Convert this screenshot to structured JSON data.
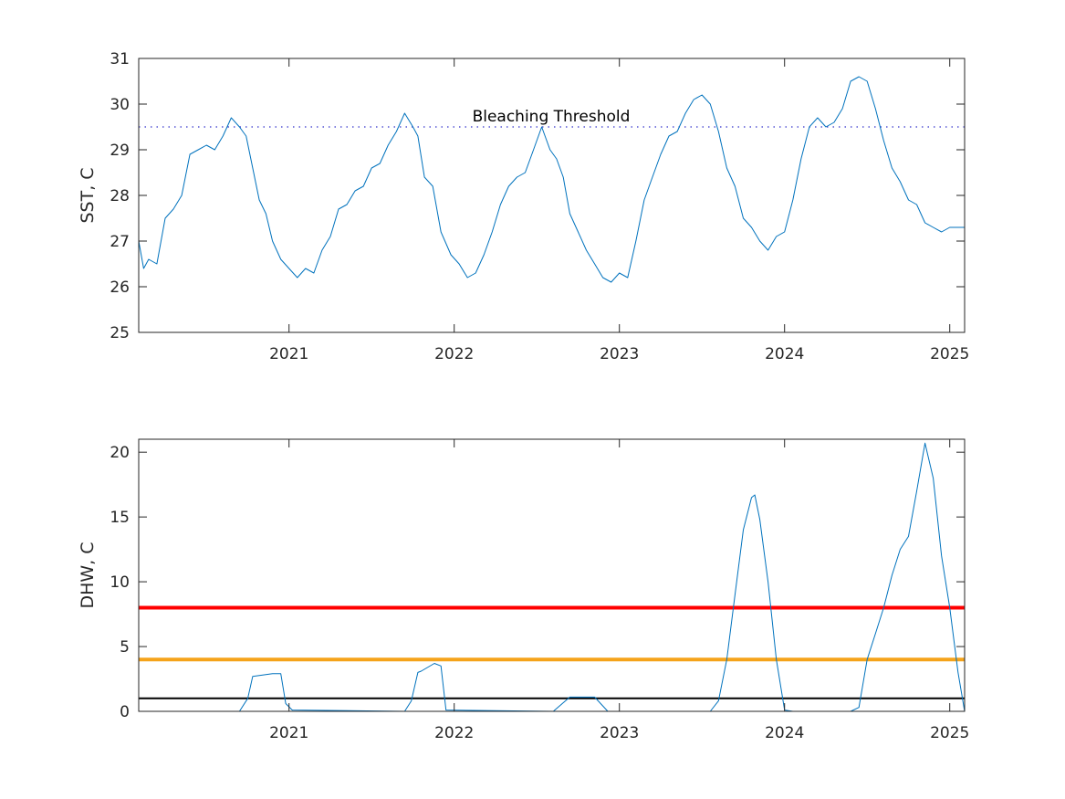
{
  "chart_data": [
    {
      "type": "line",
      "ylabel": "SST, C",
      "xlim": [
        2020.09,
        2025.09
      ],
      "ylim": [
        25,
        31
      ],
      "xticks": [
        "2021",
        "2022",
        "2023",
        "2024",
        "2025"
      ],
      "yticks": [
        "25",
        "26",
        "27",
        "28",
        "29",
        "30",
        "31"
      ],
      "grid": false,
      "threshold": {
        "label": "Bleaching Threshold",
        "value": 29.5,
        "color": "#3333cc",
        "style": "dotted"
      },
      "series": [
        {
          "color": "#0072bd",
          "x": [
            2020.09,
            2020.12,
            2020.15,
            2020.2,
            2020.25,
            2020.3,
            2020.35,
            2020.4,
            2020.45,
            2020.5,
            2020.55,
            2020.6,
            2020.65,
            2020.7,
            2020.74,
            2020.78,
            2020.82,
            2020.86,
            2020.9,
            2020.95,
            2021.0,
            2021.05,
            2021.1,
            2021.15,
            2021.2,
            2021.25,
            2021.3,
            2021.35,
            2021.4,
            2021.45,
            2021.5,
            2021.55,
            2021.6,
            2021.65,
            2021.7,
            2021.75,
            2021.78,
            2021.82,
            2021.87,
            2021.92,
            2021.98,
            2022.03,
            2022.08,
            2022.13,
            2022.18,
            2022.23,
            2022.28,
            2022.33,
            2022.38,
            2022.43,
            2022.48,
            2022.53,
            2022.58,
            2022.62,
            2022.66,
            2022.7,
            2022.75,
            2022.8,
            2022.85,
            2022.9,
            2022.95,
            2023.0,
            2023.05,
            2023.1,
            2023.15,
            2023.2,
            2023.25,
            2023.3,
            2023.35,
            2023.4,
            2023.45,
            2023.5,
            2023.55,
            2023.6,
            2023.65,
            2023.7,
            2023.75,
            2023.8,
            2023.85,
            2023.9,
            2023.95,
            2024.0,
            2024.05,
            2024.1,
            2024.15,
            2024.2,
            2024.25,
            2024.3,
            2024.35,
            2024.4,
            2024.45,
            2024.5,
            2024.55,
            2024.6,
            2024.65,
            2024.7,
            2024.75,
            2024.8,
            2024.85,
            2024.9,
            2024.95,
            2025.0,
            2025.05,
            2025.09
          ],
          "y": [
            27.0,
            26.4,
            26.6,
            26.5,
            27.5,
            27.7,
            28.0,
            28.9,
            29.0,
            29.1,
            29.0,
            29.3,
            29.7,
            29.5,
            29.3,
            28.6,
            27.9,
            27.6,
            27.0,
            26.6,
            26.4,
            26.2,
            26.4,
            26.3,
            26.8,
            27.1,
            27.7,
            27.8,
            28.1,
            28.2,
            28.6,
            28.7,
            29.1,
            29.4,
            29.8,
            29.5,
            29.3,
            28.4,
            28.2,
            27.2,
            26.7,
            26.5,
            26.2,
            26.3,
            26.7,
            27.2,
            27.8,
            28.2,
            28.4,
            28.5,
            29.0,
            29.5,
            29.0,
            28.8,
            28.4,
            27.6,
            27.2,
            26.8,
            26.5,
            26.2,
            26.1,
            26.3,
            26.2,
            27.0,
            27.9,
            28.4,
            28.9,
            29.3,
            29.4,
            29.8,
            30.1,
            30.2,
            30.0,
            29.4,
            28.6,
            28.2,
            27.5,
            27.3,
            27.0,
            26.8,
            27.1,
            27.2,
            27.9,
            28.8,
            29.5,
            29.7,
            29.5,
            29.6,
            29.9,
            30.5,
            30.6,
            30.5,
            29.9,
            29.2,
            28.6,
            28.3,
            27.9,
            27.8,
            27.4,
            27.3,
            27.2,
            27.3,
            27.3,
            27.3
          ],
          "x_units": "year"
        }
      ]
    },
    {
      "type": "line",
      "ylabel": "DHW, C",
      "xlim": [
        2020.09,
        2025.09
      ],
      "ylim": [
        0,
        21
      ],
      "xticks": [
        "2021",
        "2022",
        "2023",
        "2024",
        "2025"
      ],
      "yticks": [
        "0",
        "5",
        "10",
        "15",
        "20"
      ],
      "grid": false,
      "reference_lines": [
        {
          "value": 8,
          "color": "#ff0000"
        },
        {
          "value": 4,
          "color": "#f5a31a"
        },
        {
          "value": 1,
          "color": "#000000"
        }
      ],
      "series": [
        {
          "color": "#0072bd",
          "x": [
            2020.09,
            2020.7,
            2020.75,
            2020.78,
            2020.9,
            2020.95,
            2020.98,
            2021.02,
            2021.7,
            2021.74,
            2021.78,
            2021.8,
            2021.88,
            2021.92,
            2021.95,
            2022.6,
            2022.7,
            2022.85,
            2022.93,
            2023.55,
            2023.6,
            2023.65,
            2023.7,
            2023.75,
            2023.8,
            2023.82,
            2023.85,
            2023.9,
            2023.95,
            2024.0,
            2024.05,
            2024.4,
            2024.45,
            2024.5,
            2024.55,
            2024.6,
            2024.65,
            2024.7,
            2024.75,
            2024.8,
            2024.85,
            2024.9,
            2024.95,
            2025.0,
            2025.05,
            2025.09
          ],
          "y": [
            0,
            0,
            1.0,
            2.7,
            2.9,
            2.9,
            0.6,
            0.1,
            0,
            0.8,
            3.0,
            3.1,
            3.7,
            3.5,
            0.1,
            0,
            1.1,
            1.1,
            0,
            0,
            0.8,
            4.0,
            9.0,
            14.0,
            16.5,
            16.7,
            14.8,
            10.0,
            4.0,
            0.1,
            0,
            0,
            0.3,
            4.0,
            6.0,
            8.0,
            10.5,
            12.5,
            13.5,
            17.0,
            20.7,
            18.0,
            12.0,
            8.0,
            3.0,
            0
          ]
        }
      ]
    }
  ]
}
